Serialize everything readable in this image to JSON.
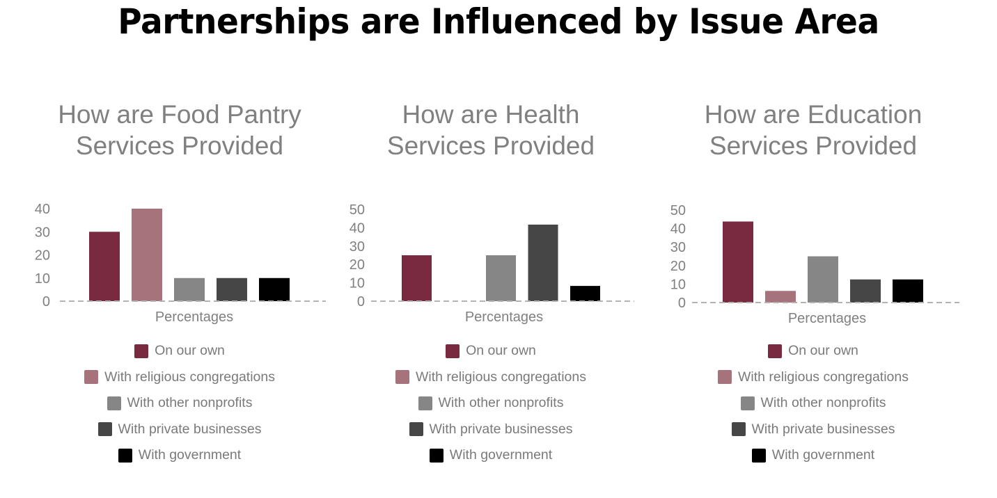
{
  "title": "Partnerships are Influenced by Issue Area",
  "series_colors": [
    "#7a2a40",
    "#a6737d",
    "#868686",
    "#464646",
    "#000000"
  ],
  "axis_color": "#808080",
  "chart_data": [
    {
      "type": "bar",
      "title_lines": [
        "How are Food Pantry",
        "Services Provided"
      ],
      "xlabel": "Percentages",
      "ylabel": "",
      "categories": [
        "Percentages"
      ],
      "ylim": [
        0,
        40
      ],
      "yticks": [
        "0",
        "10",
        "20",
        "30",
        "40"
      ],
      "ytick_values": [
        0,
        10,
        20,
        30,
        40
      ],
      "grid": false,
      "legend_position": "bottom",
      "series": [
        {
          "name": "On our own",
          "values": [
            30
          ]
        },
        {
          "name": "With religious congregations",
          "values": [
            40
          ]
        },
        {
          "name": "With other nonprofits",
          "values": [
            10
          ]
        },
        {
          "name": "With private businesses",
          "values": [
            10
          ]
        },
        {
          "name": "With government",
          "values": [
            10
          ]
        }
      ]
    },
    {
      "type": "bar",
      "title_lines": [
        "How are Health",
        "Services Provided"
      ],
      "xlabel": "Percentages",
      "ylabel": "",
      "categories": [
        "Percentages"
      ],
      "ylim": [
        0,
        50
      ],
      "yticks": [
        "0",
        "10",
        "20",
        "30",
        "40",
        "50"
      ],
      "ytick_values": [
        0,
        10,
        20,
        30,
        40,
        50
      ],
      "grid": false,
      "legend_position": "bottom",
      "series": [
        {
          "name": "On our own",
          "values": [
            25
          ]
        },
        {
          "name": "With religious congregations",
          "values": [
            0
          ]
        },
        {
          "name": "With other nonprofits",
          "values": [
            25
          ]
        },
        {
          "name": "With private businesses",
          "values": [
            41.7
          ]
        },
        {
          "name": "With government",
          "values": [
            8.3
          ]
        }
      ]
    },
    {
      "type": "bar",
      "title_lines": [
        "How are Education",
        "Services Provided"
      ],
      "xlabel": "Percentages",
      "ylabel": "",
      "categories": [
        "Percentages"
      ],
      "ylim": [
        0,
        50
      ],
      "yticks": [
        "0",
        "10",
        "20",
        "30",
        "40",
        "50"
      ],
      "ytick_values": [
        0,
        10,
        20,
        30,
        40,
        50
      ],
      "grid": false,
      "legend_position": "bottom",
      "series": [
        {
          "name": "On our own",
          "values": [
            43.8
          ]
        },
        {
          "name": "With religious congregations",
          "values": [
            6.3
          ]
        },
        {
          "name": "With other nonprofits",
          "values": [
            25
          ]
        },
        {
          "name": "With private businesses",
          "values": [
            12.5
          ]
        },
        {
          "name": "With government",
          "values": [
            12.5
          ]
        }
      ]
    }
  ]
}
